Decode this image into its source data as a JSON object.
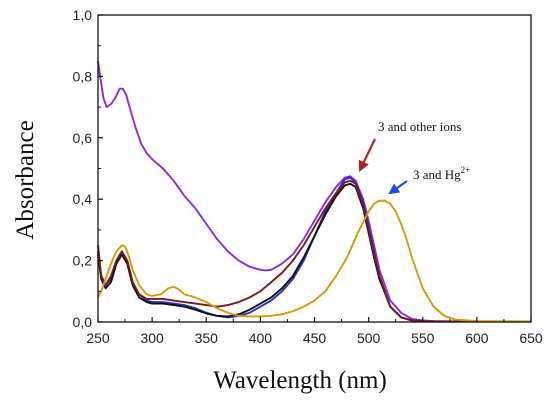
{
  "chart_data": {
    "type": "line",
    "title": "",
    "xlabel": "Wavelength (nm)",
    "ylabel": "Absorbance",
    "xlim": [
      250,
      650
    ],
    "ylim": [
      0,
      1.0
    ],
    "xticks": [
      250,
      300,
      350,
      400,
      450,
      500,
      550,
      600,
      650
    ],
    "yticks": [
      0,
      0.2,
      0.4,
      0.6,
      0.8,
      1.0
    ],
    "xtick_labels": [
      "250",
      "300",
      "350",
      "400",
      "450",
      "500",
      "550",
      "600",
      "650"
    ],
    "ytick_labels": [
      "0,0",
      "0,2",
      "0,4",
      "0,6",
      "0,8",
      "1,0"
    ],
    "grid": false,
    "legend": "none",
    "annotations": [
      {
        "text": "3 and other ions",
        "x": 470,
        "y": 0.5,
        "arrow_color": "#b22222"
      },
      {
        "text": "3 and Hg",
        "superscript": "2+",
        "x": 530,
        "y": 0.41,
        "arrow_color": "#1f4fe0"
      }
    ],
    "series": [
      {
        "color": "#8a2be2",
        "x": [
          250,
          252,
          255,
          258,
          262,
          266,
          270,
          273,
          276,
          280,
          285,
          290,
          295,
          300,
          310,
          320,
          330,
          340,
          350,
          360,
          370,
          380,
          390,
          400,
          405,
          410,
          415,
          420,
          430,
          440,
          450,
          460,
          470,
          478,
          483,
          488,
          495,
          500,
          505,
          510,
          520,
          530,
          540,
          550,
          560,
          580,
          600,
          650
        ],
        "y": [
          0.85,
          0.8,
          0.73,
          0.7,
          0.71,
          0.73,
          0.76,
          0.76,
          0.74,
          0.69,
          0.63,
          0.58,
          0.55,
          0.53,
          0.5,
          0.46,
          0.41,
          0.37,
          0.32,
          0.27,
          0.23,
          0.2,
          0.18,
          0.17,
          0.168,
          0.17,
          0.18,
          0.19,
          0.22,
          0.27,
          0.33,
          0.39,
          0.44,
          0.47,
          0.475,
          0.46,
          0.4,
          0.33,
          0.25,
          0.17,
          0.07,
          0.03,
          0.01,
          0.005,
          0.003,
          0.002,
          0.002,
          0.002
        ]
      },
      {
        "color": "#2233cc",
        "x": [
          250,
          253,
          257,
          262,
          267,
          272,
          277,
          282,
          288,
          295,
          300,
          310,
          320,
          330,
          340,
          350,
          360,
          370,
          380,
          390,
          400,
          410,
          420,
          430,
          440,
          450,
          460,
          470,
          478,
          483,
          488,
          495,
          500,
          505,
          510,
          520,
          530,
          540,
          550,
          650
        ],
        "y": [
          0.23,
          0.15,
          0.12,
          0.14,
          0.2,
          0.23,
          0.2,
          0.13,
          0.09,
          0.07,
          0.065,
          0.065,
          0.06,
          0.055,
          0.045,
          0.03,
          0.02,
          0.015,
          0.02,
          0.03,
          0.05,
          0.07,
          0.1,
          0.14,
          0.2,
          0.28,
          0.36,
          0.42,
          0.465,
          0.47,
          0.455,
          0.39,
          0.31,
          0.23,
          0.15,
          0.05,
          0.015,
          0.005,
          0.002,
          0.002
        ]
      },
      {
        "color": "#111111",
        "x": [
          250,
          253,
          257,
          262,
          267,
          272,
          277,
          282,
          288,
          295,
          300,
          310,
          320,
          330,
          340,
          350,
          360,
          370,
          380,
          390,
          400,
          410,
          420,
          430,
          440,
          450,
          460,
          470,
          478,
          483,
          488,
          495,
          500,
          505,
          510,
          520,
          530,
          540,
          550,
          650
        ],
        "y": [
          0.22,
          0.14,
          0.11,
          0.13,
          0.19,
          0.22,
          0.19,
          0.12,
          0.08,
          0.065,
          0.06,
          0.06,
          0.055,
          0.05,
          0.04,
          0.028,
          0.02,
          0.018,
          0.025,
          0.04,
          0.06,
          0.08,
          0.11,
          0.15,
          0.21,
          0.28,
          0.35,
          0.41,
          0.445,
          0.45,
          0.44,
          0.37,
          0.29,
          0.21,
          0.14,
          0.05,
          0.015,
          0.005,
          0.002,
          0.002
        ]
      },
      {
        "color": "#7b1a1a",
        "x": [
          250,
          253,
          257,
          262,
          267,
          272,
          277,
          282,
          288,
          295,
          300,
          310,
          320,
          330,
          340,
          350,
          360,
          370,
          380,
          390,
          400,
          410,
          420,
          430,
          440,
          450,
          460,
          470,
          478,
          483,
          488,
          495,
          500,
          505,
          510,
          520,
          530,
          540,
          550,
          650
        ],
        "y": [
          0.25,
          0.15,
          0.12,
          0.15,
          0.2,
          0.23,
          0.2,
          0.13,
          0.09,
          0.075,
          0.075,
          0.075,
          0.07,
          0.065,
          0.06,
          0.055,
          0.05,
          0.055,
          0.065,
          0.08,
          0.1,
          0.13,
          0.16,
          0.2,
          0.25,
          0.31,
          0.37,
          0.42,
          0.455,
          0.46,
          0.45,
          0.38,
          0.3,
          0.22,
          0.15,
          0.05,
          0.015,
          0.005,
          0.002,
          0.002
        ]
      },
      {
        "color": "#d49a0b",
        "x": [
          250,
          253,
          257,
          262,
          267,
          272,
          275,
          278,
          282,
          288,
          295,
          300,
          308,
          315,
          320,
          325,
          330,
          340,
          350,
          360,
          370,
          380,
          390,
          400,
          410,
          420,
          430,
          440,
          450,
          460,
          470,
          480,
          490,
          500,
          505,
          510,
          515,
          520,
          525,
          530,
          535,
          540,
          545,
          550,
          560,
          570,
          580,
          600,
          650
        ],
        "y": [
          0.08,
          0.1,
          0.14,
          0.19,
          0.23,
          0.25,
          0.245,
          0.22,
          0.17,
          0.12,
          0.09,
          0.085,
          0.09,
          0.11,
          0.115,
          0.105,
          0.09,
          0.08,
          0.065,
          0.045,
          0.03,
          0.02,
          0.018,
          0.018,
          0.02,
          0.025,
          0.035,
          0.05,
          0.07,
          0.1,
          0.15,
          0.21,
          0.29,
          0.36,
          0.385,
          0.395,
          0.395,
          0.385,
          0.36,
          0.32,
          0.27,
          0.21,
          0.16,
          0.11,
          0.05,
          0.02,
          0.008,
          0.003,
          0.002
        ]
      }
    ]
  }
}
